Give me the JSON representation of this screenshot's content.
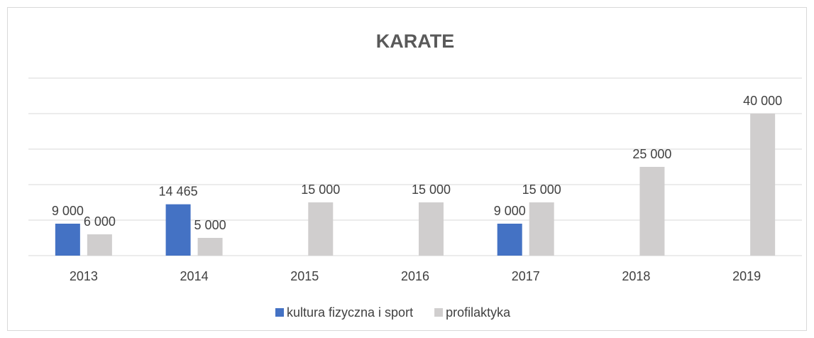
{
  "chart_data": {
    "type": "bar",
    "title": "KARATE",
    "categories": [
      "2013",
      "2014",
      "2015",
      "2016",
      "2017",
      "2018",
      "2019"
    ],
    "series": [
      {
        "name": "kultura fizyczna i sport",
        "color": "#4472c4",
        "values": [
          9000,
          14465,
          null,
          null,
          9000,
          null,
          null
        ],
        "value_labels": [
          "9 000",
          "14 465",
          null,
          null,
          "9 000",
          null,
          null
        ]
      },
      {
        "name": "profilaktyka",
        "color": "#d0cece",
        "values": [
          6000,
          5000,
          15000,
          15000,
          15000,
          25000,
          40000
        ],
        "value_labels": [
          "6 000",
          "5 000",
          "15 000",
          "15 000",
          "15 000",
          "25 000",
          "40 000"
        ]
      }
    ],
    "ylim": [
      0,
      50000
    ],
    "yticks": [
      0,
      10000,
      20000,
      30000,
      40000,
      50000
    ],
    "grid": true,
    "legend": "bottom"
  }
}
